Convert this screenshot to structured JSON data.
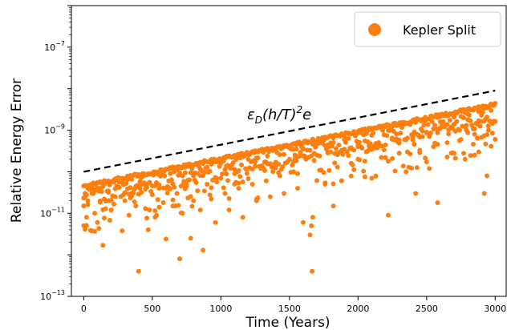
{
  "chart_data": {
    "type": "scatter",
    "title": "",
    "xlabel": "Time (Years)",
    "ylabel": "Relative Energy Error",
    "xlim": [
      -90,
      3080
    ],
    "ylim_log10": [
      -13,
      -6
    ],
    "yscale": "log",
    "xticks": [
      0,
      500,
      1000,
      1500,
      2000,
      2500,
      3000
    ],
    "yticks": [
      {
        "exp": -13,
        "label": "10",
        "sup": "−13"
      },
      {
        "exp": -11,
        "label": "10",
        "sup": "−11"
      },
      {
        "exp": -9,
        "label": "10",
        "sup": "−9"
      },
      {
        "exp": -7,
        "label": "10",
        "sup": "−7"
      }
    ],
    "grid": false,
    "legend_position": "top-right",
    "marker_color": "#ff7f0e",
    "line_color": "#000000",
    "series": [
      {
        "name": "Kepler Split",
        "kind": "scatter",
        "envelope_start": [
          0,
          5e-11
        ],
        "envelope_end": [
          3000,
          4.5e-09
        ],
        "points": [
          [
            0,
            1.5e-11
          ],
          [
            0,
            5e-12
          ],
          [
            10,
            3e-11
          ],
          [
            20,
            8e-12
          ],
          [
            30,
            2e-11
          ],
          [
            60,
            3e-11
          ],
          [
            80,
            1e-11
          ],
          [
            100,
            6e-12
          ],
          [
            120,
            4e-11
          ],
          [
            140,
            1.7e-12
          ],
          [
            150,
            2.2e-11
          ],
          [
            180,
            3.2e-11
          ],
          [
            200,
            1.2e-11
          ],
          [
            230,
            2.5e-11
          ],
          [
            260,
            4.2e-11
          ],
          [
            280,
            3.8e-12
          ],
          [
            300,
            2e-11
          ],
          [
            330,
            9e-12
          ],
          [
            350,
            3e-11
          ],
          [
            380,
            1.5e-11
          ],
          [
            400,
            4e-13
          ],
          [
            420,
            5e-11
          ],
          [
            450,
            1.3e-11
          ],
          [
            470,
            4e-12
          ],
          [
            500,
            2.8e-11
          ],
          [
            520,
            8e-12
          ],
          [
            550,
            4e-11
          ],
          [
            580,
            1.8e-11
          ],
          [
            600,
            2.4e-12
          ],
          [
            620,
            6e-11
          ],
          [
            650,
            1.5e-11
          ],
          [
            680,
            3e-11
          ],
          [
            700,
            8e-13
          ],
          [
            720,
            1e-11
          ],
          [
            750,
            4.5e-11
          ],
          [
            780,
            2.5e-12
          ],
          [
            800,
            2e-11
          ],
          [
            830,
            3.5e-11
          ],
          [
            850,
            1.2e-11
          ],
          [
            870,
            1.3e-12
          ],
          [
            900,
            5e-11
          ],
          [
            930,
            2.2e-11
          ],
          [
            960,
            6e-12
          ],
          [
            1000,
            7e-11
          ],
          [
            1030,
            3e-11
          ],
          [
            1060,
            1.2e-11
          ],
          [
            1100,
            9e-11
          ],
          [
            1130,
            4e-11
          ],
          [
            1160,
            8e-12
          ],
          [
            1200,
            1.2e-10
          ],
          [
            1230,
            5e-11
          ],
          [
            1260,
            2e-11
          ],
          [
            1300,
            1.4e-10
          ],
          [
            1330,
            6e-11
          ],
          [
            1360,
            2.5e-11
          ],
          [
            1400,
            1.7e-10
          ],
          [
            1430,
            8e-11
          ],
          [
            1460,
            3e-11
          ],
          [
            1500,
            2e-10
          ],
          [
            1530,
            1e-10
          ],
          [
            1560,
            4e-11
          ],
          [
            1600,
            6e-12
          ],
          [
            1620,
            2e-10
          ],
          [
            1650,
            3e-12
          ],
          [
            1660,
            5e-12
          ],
          [
            1665,
            4e-13
          ],
          [
            1670,
            8e-12
          ],
          [
            1700,
            2.5e-10
          ],
          [
            1730,
            1.1e-10
          ],
          [
            1760,
            5e-11
          ],
          [
            1800,
            3e-10
          ],
          [
            1820,
            1.5e-11
          ],
          [
            1850,
            1.3e-10
          ],
          [
            1880,
            6e-11
          ],
          [
            1900,
            3.5e-10
          ],
          [
            1950,
            1.6e-10
          ],
          [
            2000,
            4e-10
          ],
          [
            2050,
            1.8e-10
          ],
          [
            2100,
            7e-11
          ],
          [
            2150,
            5e-10
          ],
          [
            2200,
            2.2e-10
          ],
          [
            2220,
            9e-12
          ],
          [
            2250,
            6e-10
          ],
          [
            2300,
            2.8e-10
          ],
          [
            2350,
            1e-10
          ],
          [
            2400,
            7e-10
          ],
          [
            2420,
            3e-11
          ],
          [
            2450,
            3.3e-10
          ],
          [
            2500,
            9e-10
          ],
          [
            2520,
            1.2e-10
          ],
          [
            2550,
            4e-10
          ],
          [
            2580,
            1.8e-11
          ],
          [
            2600,
            1.1e-09
          ],
          [
            2650,
            5e-10
          ],
          [
            2700,
            1.4e-09
          ],
          [
            2750,
            6e-10
          ],
          [
            2780,
            2e-10
          ],
          [
            2800,
            1.8e-09
          ],
          [
            2850,
            8e-10
          ],
          [
            2880,
            3e-10
          ],
          [
            2900,
            2.3e-09
          ],
          [
            2920,
            3e-11
          ],
          [
            2940,
            8e-11
          ],
          [
            2950,
            1e-09
          ],
          [
            2970,
            3e-09
          ]
        ]
      },
      {
        "name": "",
        "kind": "dashed-line",
        "x": [
          0,
          3000
        ],
        "y": [
          1e-10,
          9e-09
        ]
      }
    ],
    "annotation": {
      "text": "ε",
      "sub": "D",
      "rest": "(h/T)",
      "sup": "2",
      "tail": "e"
    }
  }
}
